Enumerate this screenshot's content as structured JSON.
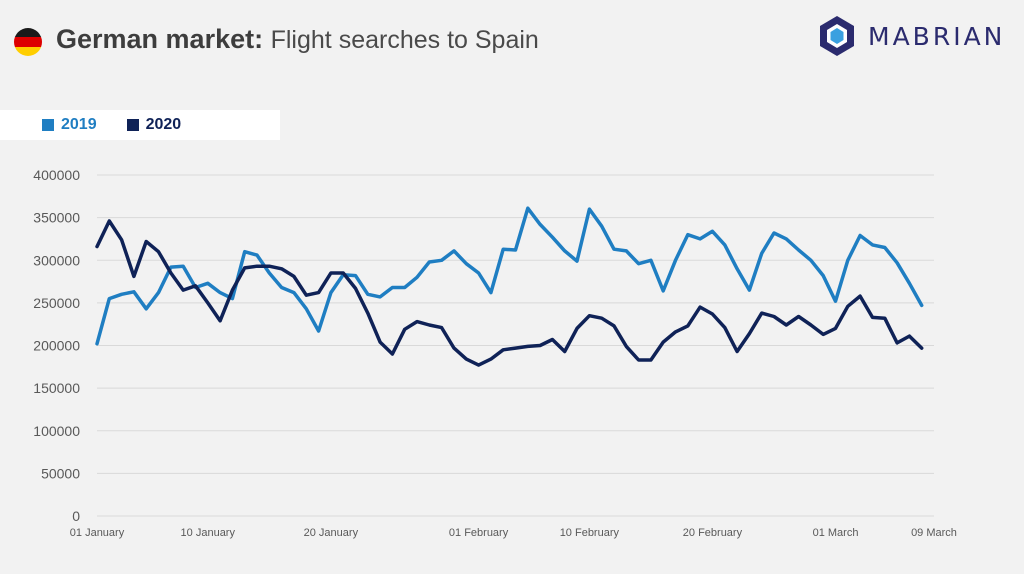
{
  "header": {
    "title_bold": "German market:",
    "title_rest": "Flight searches to Spain",
    "logo_text": "MABRIAN",
    "flag_icon": "germany-flag-icon",
    "logo_icon": "mabrian-hexagon-logo-icon"
  },
  "colors": {
    "series_2019": "#1f7ec2",
    "series_2020": "#0f2257",
    "grid": "#d9d9d9",
    "flag": [
      "#1a1a1a",
      "#dd0000",
      "#ffce00"
    ],
    "logo_dark": "#2b2b6e",
    "logo_light": "#3aa0e0"
  },
  "chart_data": {
    "type": "line",
    "title": "German market: Flight searches to Spain",
    "xlabel": "",
    "ylabel": "",
    "ylim": [
      0,
      400000
    ],
    "yticks": [
      0,
      50000,
      100000,
      150000,
      200000,
      250000,
      300000,
      350000,
      400000
    ],
    "ytick_labels": [
      "0",
      "50000",
      "100000",
      "150000",
      "200000",
      "250000",
      "300000",
      "350000",
      "400000"
    ],
    "x_tick_labels": [
      {
        "day": 1,
        "label": "01 January"
      },
      {
        "day": 10,
        "label": "10 January"
      },
      {
        "day": 20,
        "label": "20 January"
      },
      {
        "day": 32,
        "label": "01 February"
      },
      {
        "day": 41,
        "label": "10 February"
      },
      {
        "day": 51,
        "label": "20 February"
      },
      {
        "day": 61,
        "label": "01 March"
      },
      {
        "day": 69,
        "label": "09 March"
      }
    ],
    "grid": true,
    "legend": "top-left",
    "x": [
      1,
      2,
      3,
      4,
      5,
      6,
      7,
      8,
      9,
      10,
      11,
      12,
      13,
      14,
      15,
      16,
      17,
      18,
      19,
      20,
      21,
      22,
      23,
      24,
      25,
      26,
      27,
      28,
      29,
      30,
      31,
      32,
      33,
      34,
      35,
      36,
      37,
      38,
      39,
      40,
      41,
      42,
      43,
      44,
      45,
      46,
      47,
      48,
      49,
      50,
      51,
      52,
      53,
      54,
      55,
      56,
      57,
      58,
      59,
      60,
      61,
      62,
      63,
      64,
      65,
      66,
      67,
      68,
      69
    ],
    "series": [
      {
        "name": "2019",
        "values": [
          202000,
          255000,
          260000,
          263000,
          243000,
          262000,
          292000,
          293000,
          268000,
          273000,
          262000,
          255000,
          310000,
          306000,
          285000,
          268000,
          262000,
          243000,
          217000,
          262000,
          283000,
          282000,
          260000,
          257000,
          268000,
          268000,
          280000,
          298000,
          300000,
          311000,
          296000,
          285000,
          262000,
          313000,
          312000,
          361000,
          342000,
          327000,
          311000,
          299000,
          360000,
          340000,
          313000,
          311000,
          296000,
          300000,
          264000,
          300000,
          330000,
          325000,
          334000,
          318000,
          290000,
          265000,
          308000,
          332000,
          325000,
          312000,
          300000,
          282000,
          252000,
          300000,
          329000,
          318000,
          315000,
          297000,
          273000,
          247000,
          null
        ]
      },
      {
        "name": "2020",
        "values": [
          316000,
          346000,
          324000,
          281000,
          322000,
          310000,
          285000,
          265000,
          270000,
          250000,
          229000,
          265000,
          291000,
          293000,
          293000,
          290000,
          281000,
          259000,
          262000,
          285000,
          285000,
          267000,
          238000,
          204000,
          190000,
          219000,
          228000,
          224000,
          221000,
          197000,
          184000,
          177000,
          184000,
          195000,
          197000,
          199000,
          200000,
          207000,
          193000,
          220000,
          235000,
          232000,
          223000,
          199000,
          183000,
          183000,
          204000,
          216000,
          223000,
          245000,
          237000,
          221000,
          193000,
          214000,
          238000,
          234000,
          224000,
          234000,
          224000,
          213000,
          220000,
          246000,
          258000,
          233000,
          232000,
          203000,
          211000,
          197000,
          null
        ]
      }
    ]
  }
}
